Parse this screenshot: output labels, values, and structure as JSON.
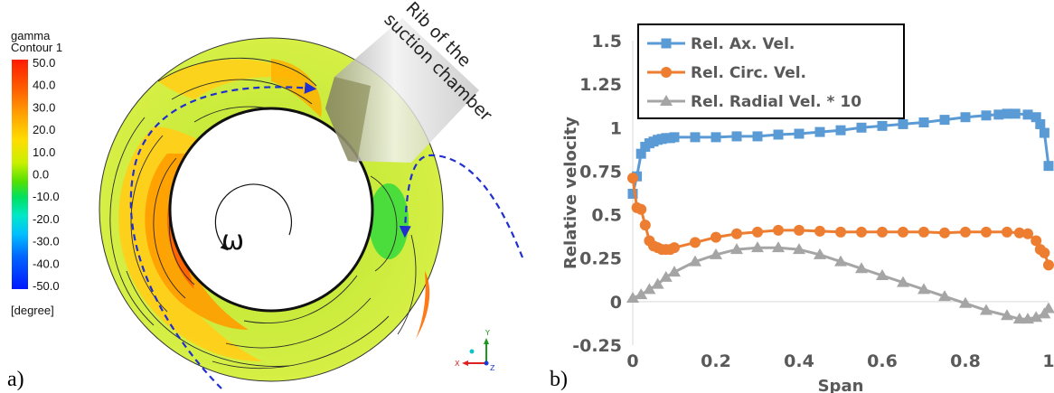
{
  "panel_a": {
    "label": "a)",
    "colorbar": {
      "title_line1": "gamma",
      "title_line2": "Contour 1",
      "unit": "[degree]",
      "levels": [
        "50.0",
        "40.0",
        "30.0",
        "20.0",
        "10.0",
        "0.0",
        "-10.0",
        "-20.0",
        "-30.0",
        "-40.0",
        "-50.0"
      ]
    },
    "rib_label_line1": "Rib of the",
    "rib_label_line2": "suction chamber",
    "omega_symbol": "ω",
    "axis_triad": {
      "y": "Y",
      "x": "X",
      "z": "Z"
    }
  },
  "panel_b": {
    "label": "b)"
  },
  "chart_data": {
    "type": "line",
    "xlabel": "Span",
    "ylabel": "Relative velocity",
    "xlim": [
      0,
      1
    ],
    "ylim": [
      -0.25,
      1.5
    ],
    "xticks": [
      "0",
      "0.2",
      "0.4",
      "0.6",
      "0.8",
      "1"
    ],
    "yticks": [
      "-0.25",
      "0",
      "0.25",
      "0.5",
      "0.75",
      "1",
      "1.25",
      "1.5"
    ],
    "grid": false,
    "legend_position": "top-left",
    "series": [
      {
        "name": "Rel. Ax. Vel.",
        "color": "#5b9bd5",
        "marker": "square",
        "x": [
          0,
          0.01,
          0.02,
          0.03,
          0.04,
          0.05,
          0.06,
          0.07,
          0.08,
          0.09,
          0.1,
          0.15,
          0.2,
          0.25,
          0.3,
          0.35,
          0.4,
          0.45,
          0.5,
          0.55,
          0.6,
          0.65,
          0.7,
          0.75,
          0.8,
          0.85,
          0.88,
          0.9,
          0.92,
          0.95,
          0.97,
          0.98,
          0.99,
          1
        ],
        "y": [
          0.62,
          0.72,
          0.85,
          0.89,
          0.91,
          0.92,
          0.93,
          0.935,
          0.94,
          0.94,
          0.945,
          0.945,
          0.945,
          0.95,
          0.95,
          0.96,
          0.965,
          0.975,
          0.985,
          1.0,
          1.01,
          1.02,
          1.03,
          1.045,
          1.06,
          1.07,
          1.075,
          1.08,
          1.08,
          1.075,
          1.06,
          1.02,
          0.97,
          0.78
        ]
      },
      {
        "name": "Rel. Circ. Vel.",
        "color": "#ed7d31",
        "marker": "circle",
        "x": [
          0,
          0.01,
          0.02,
          0.03,
          0.04,
          0.05,
          0.06,
          0.07,
          0.08,
          0.09,
          0.1,
          0.15,
          0.2,
          0.25,
          0.3,
          0.35,
          0.4,
          0.45,
          0.5,
          0.55,
          0.6,
          0.65,
          0.7,
          0.75,
          0.8,
          0.85,
          0.9,
          0.93,
          0.95,
          0.97,
          0.98,
          0.99,
          1
        ],
        "y": [
          0.71,
          0.54,
          0.53,
          0.44,
          0.35,
          0.32,
          0.31,
          0.3,
          0.3,
          0.3,
          0.31,
          0.34,
          0.37,
          0.39,
          0.4,
          0.41,
          0.41,
          0.405,
          0.4,
          0.4,
          0.4,
          0.4,
          0.4,
          0.395,
          0.4,
          0.4,
          0.4,
          0.395,
          0.39,
          0.35,
          0.3,
          0.28,
          0.21
        ]
      },
      {
        "name": "Rel. Radial Vel. * 10",
        "color": "#a5a5a5",
        "marker": "triangle",
        "x": [
          0,
          0.02,
          0.04,
          0.06,
          0.08,
          0.1,
          0.15,
          0.2,
          0.25,
          0.3,
          0.35,
          0.4,
          0.45,
          0.5,
          0.55,
          0.6,
          0.65,
          0.7,
          0.75,
          0.8,
          0.85,
          0.9,
          0.93,
          0.95,
          0.97,
          0.99,
          1
        ],
        "y": [
          0.02,
          0.04,
          0.07,
          0.1,
          0.14,
          0.17,
          0.23,
          0.27,
          0.3,
          0.31,
          0.31,
          0.3,
          0.27,
          0.23,
          0.19,
          0.15,
          0.11,
          0.07,
          0.03,
          -0.01,
          -0.05,
          -0.08,
          -0.1,
          -0.1,
          -0.09,
          -0.07,
          -0.04
        ]
      }
    ]
  }
}
